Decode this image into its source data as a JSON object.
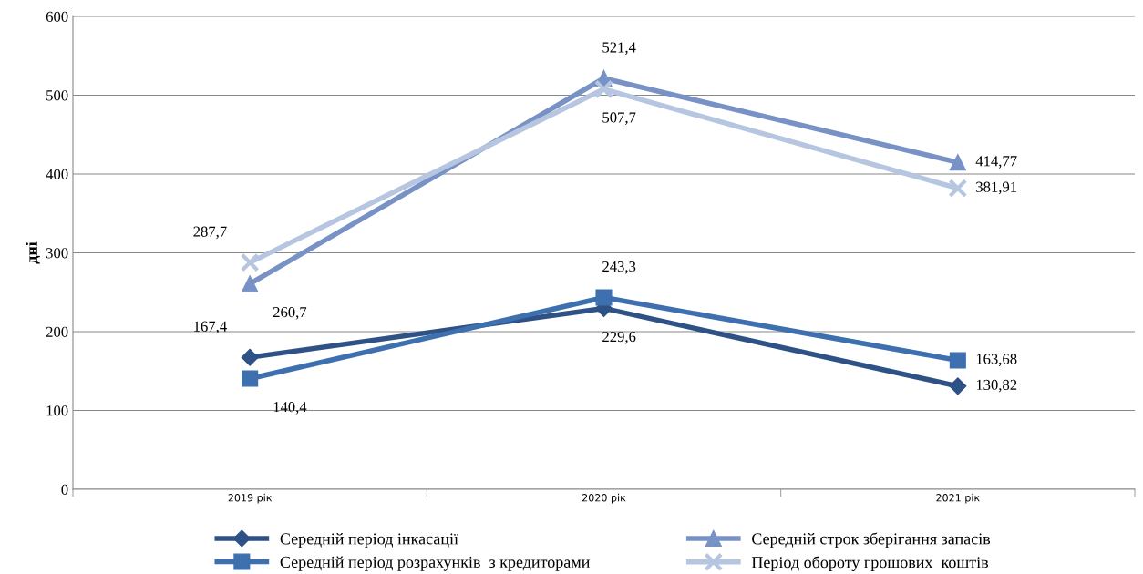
{
  "chart_data": {
    "type": "line",
    "ylabel": "дні",
    "categories": [
      "2019 рік",
      "2020 рік",
      "2021 рік"
    ],
    "ylim": [
      0,
      600
    ],
    "yticks": [
      0,
      100,
      200,
      300,
      400,
      500,
      600
    ],
    "grid": "y",
    "legend": "bottom",
    "series": [
      {
        "name": "Середній період інкасації",
        "color": "#2f5286",
        "marker": "diamond",
        "values": [
          167.4,
          229.6,
          130.82
        ],
        "value_labels": [
          "167,4",
          "229,6",
          "130,82"
        ]
      },
      {
        "name": "Середній період розрахунків  з кредиторами",
        "color": "#3e6fae",
        "marker": "square",
        "values": [
          140.4,
          243.3,
          163.68
        ],
        "value_labels": [
          "140,4",
          "243,3",
          "163,68"
        ]
      },
      {
        "name": "Середній строк зберігання запасів",
        "color": "#7892c6",
        "marker": "triangle",
        "values": [
          260.7,
          521.4,
          414.77
        ],
        "value_labels": [
          "260,7",
          "521,4",
          "414,77"
        ]
      },
      {
        "name": "Період обороту грошових  коштів",
        "color": "#b7c6e0",
        "marker": "cross",
        "values": [
          287.7,
          507.7,
          381.91
        ],
        "value_labels": [
          "287,7",
          "507,7",
          "381,91"
        ]
      }
    ]
  }
}
